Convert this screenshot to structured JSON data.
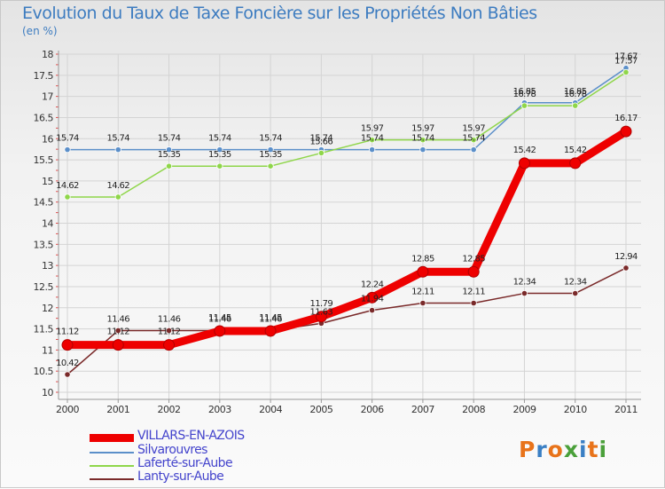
{
  "title": "Evolution du Taux de Taxe Foncière sur les Propriétés Non Bâties",
  "unit": "(en %)",
  "logo": {
    "text": "Proxiti",
    "colors": [
      "#e8731a",
      "#3a7fc4",
      "#e8731a",
      "#4aa03a",
      "#3a7fc4",
      "#e8731a",
      "#4aa03a"
    ]
  },
  "chart_data": {
    "type": "line",
    "title": "Evolution du Taux de Taxe Foncière sur les Propriétés Non Bâties",
    "ylabel": "(en %)",
    "xlabel": "",
    "x": [
      "2000",
      "2001",
      "2002",
      "2003",
      "2004",
      "2005",
      "2006",
      "2007",
      "2008",
      "2009",
      "2010",
      "2011"
    ],
    "ylim": [
      10,
      18
    ],
    "yticks": [
      "10",
      "10.5",
      "11",
      "11.5",
      "12",
      "12.5",
      "13",
      "13.5",
      "14",
      "14.5",
      "15",
      "15.5",
      "16",
      "16.5",
      "17",
      "17.5",
      "18"
    ],
    "grid": true,
    "legend_position": "bottom-left",
    "series": [
      {
        "name": "VILLARS-EN-AZOIS",
        "color": "#ee0000",
        "values": [
          11.12,
          11.12,
          11.12,
          11.45,
          11.45,
          11.79,
          12.24,
          12.85,
          12.85,
          15.42,
          15.42,
          16.17
        ],
        "labels": [
          "11.12",
          "11.12",
          "11.12",
          "11.45",
          "11.45",
          "11.79",
          "12.24",
          "12.85",
          "12.85",
          "15.42",
          "15.42",
          "16.17"
        ]
      },
      {
        "name": "Silvarouvres",
        "color": "#5b8fc9",
        "values": [
          15.74,
          15.74,
          15.74,
          15.74,
          15.74,
          15.74,
          15.74,
          15.74,
          15.74,
          16.85,
          16.85,
          17.67
        ],
        "labels": [
          "15.74",
          "15.74",
          "15.74",
          "15.74",
          "15.74",
          "15.74",
          "15.74",
          "15.74",
          "15.74",
          "16.85",
          "16.85",
          "17.67"
        ]
      },
      {
        "name": "Laferté-sur-Aube",
        "color": "#8fd64a",
        "values": [
          14.62,
          14.62,
          15.35,
          15.35,
          15.35,
          15.66,
          15.97,
          15.97,
          15.97,
          16.78,
          16.78,
          17.57
        ],
        "labels": [
          "14.62",
          "14.62",
          "15.35",
          "15.35",
          "15.35",
          "15.66",
          "15.97",
          "15.97",
          "15.97",
          "16.78",
          "16.78",
          "17.57"
        ]
      },
      {
        "name": "Lanty-sur-Aube",
        "color": "#7a2a2a",
        "values": [
          10.42,
          11.46,
          11.46,
          11.46,
          11.46,
          11.63,
          11.94,
          12.11,
          12.11,
          12.34,
          12.34,
          12.94
        ],
        "labels": [
          "10.42",
          "11.46",
          "11.46",
          "11.46",
          "11.46",
          "11.63",
          "11.94",
          "12.11",
          "12.11",
          "12.34",
          "12.34",
          "12.94"
        ]
      }
    ]
  }
}
